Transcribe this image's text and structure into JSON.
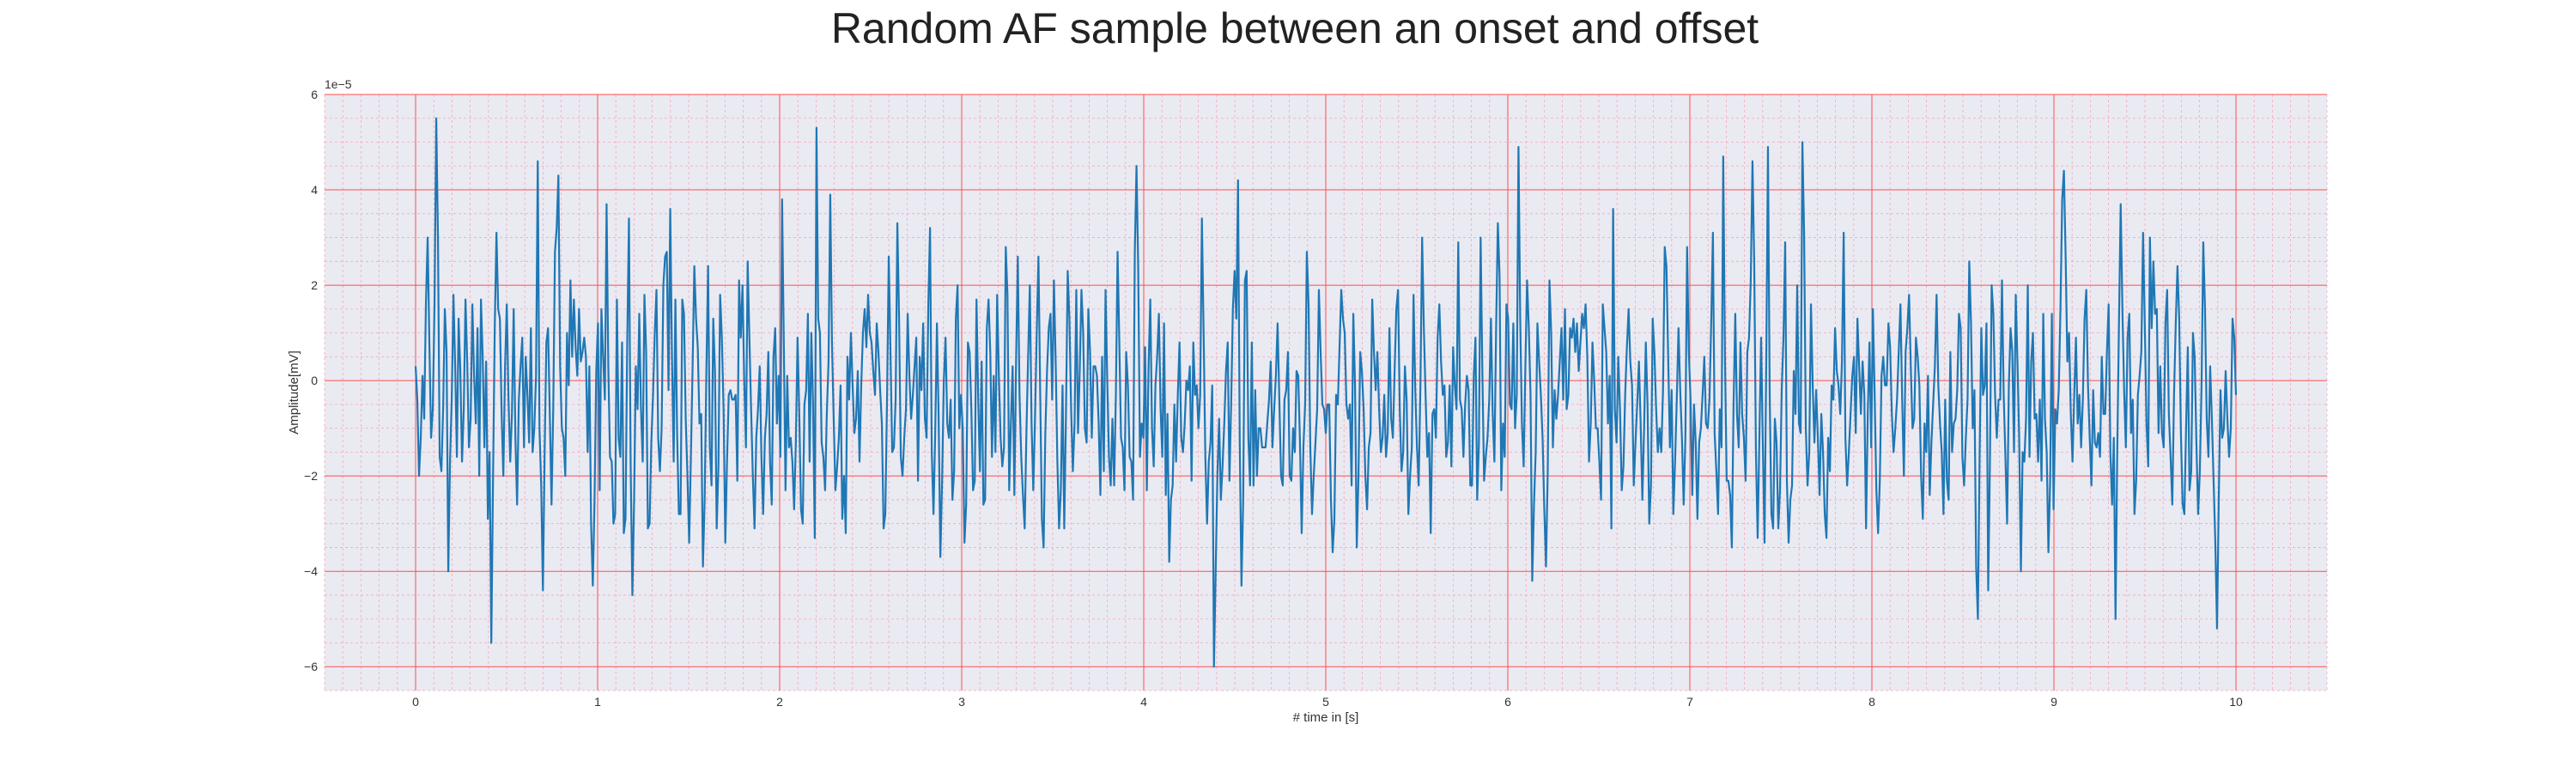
{
  "chart_data": {
    "type": "line",
    "title": "Random AF sample between an onset and offset",
    "xlabel": "# time in [s]",
    "ylabel": "Amplitude[mV]",
    "y_offset_label": "1e−5",
    "xlim": [
      -0.5,
      10.5
    ],
    "ylim": [
      -6.5,
      6
    ],
    "xticks": [
      0,
      1,
      2,
      3,
      4,
      5,
      6,
      7,
      8,
      9,
      10
    ],
    "yticks": [
      -6,
      -4,
      -2,
      0,
      2,
      4,
      6
    ],
    "ytick_labels": [
      "−6",
      "−4",
      "−2",
      "0",
      "2",
      "4",
      "6"
    ],
    "grid": true,
    "colors": {
      "line": "#1f77b4",
      "plot_background": "#eaeaf2",
      "major_grid": "#ff4d4d",
      "minor_grid": "#f5a8b8"
    },
    "series": [
      {
        "x_start": 0,
        "x_end": 10,
        "values": [
          0.3,
          -0.4,
          -2,
          -1.2,
          0.1,
          -0.8,
          1.6,
          3,
          0.8,
          -1.2,
          -0.6,
          1.6,
          5.5,
          3,
          -1.6,
          -1.9,
          -0.6,
          1.5,
          0.6,
          -4,
          -1.7,
          -0.4,
          1.8,
          0.3,
          -1.6,
          1.3,
          0.2,
          -1.7,
          -0.6,
          1.7,
          0.4,
          -1.4,
          -0.8,
          1.6,
          0.1,
          -0.9,
          1.1,
          -2,
          1.7,
          0.5,
          -1.4,
          0.4,
          -2.9,
          -1.5,
          -5.5,
          -2.1,
          1.1,
          3.1,
          1.5,
          1.3,
          -0.7,
          -2,
          0.3,
          1.6,
          -0.4,
          -1.7,
          -0.7,
          1.5,
          -1.2,
          -2.6,
          -0.4,
          0.3,
          0.9,
          -1.4,
          0.5,
          -0.3,
          -1.3,
          1.1,
          -1.5,
          -1,
          0.1,
          4.6,
          -1,
          -2.2,
          -4.4,
          -1.5,
          0.8,
          1.1,
          -0.7,
          -2.6,
          -0.6,
          2.7,
          3.2,
          4.3,
          0.3,
          -1,
          -1.2,
          -2,
          1,
          -0.1,
          2.1,
          0.5,
          1.7,
          0.7,
          0.1,
          1.5,
          0.4,
          0.6,
          0.9,
          0.5,
          -1.5,
          0.3,
          -3,
          -4.3,
          -2.5,
          0.2,
          1.2,
          -2.3,
          1.5,
          0.5,
          -0.4,
          3.7,
          0.3,
          -1.6,
          -1.7,
          -3,
          -2.8,
          1.7,
          -1.2,
          -1.6,
          0.8,
          -3.2,
          -2.9,
          0.8,
          3.4,
          -1.8,
          -4.5,
          -2.5,
          0.3,
          -0.6,
          1.4,
          -0.6,
          -1.7,
          1.8,
          0.6,
          -3.1,
          -3,
          -1.3,
          -0.3,
          1,
          1.9,
          -1.2,
          -1.9,
          -1,
          2,
          2.6,
          2.7,
          -0.2,
          3.6,
          0.5,
          -1.7,
          1.7,
          -1.1,
          -2.8,
          -2.8,
          1.7,
          1.4,
          -0.8,
          -2,
          -3.4,
          -1.6,
          0.3,
          2.4,
          1.3,
          0.7,
          -0.9,
          -0.7,
          -3.9,
          -2.5,
          0.2,
          2.4,
          -1.4,
          -2.2,
          1.3,
          0.2,
          -3.1,
          -1.8,
          1.8,
          0.9,
          -0.6,
          -3.4,
          -1.7,
          -0.3,
          -0.2,
          -0.4,
          -0.4,
          -0.3,
          -2.1,
          2.1,
          0.9,
          2,
          0,
          -1.4,
          2.5,
          0.9,
          -0.6,
          -2,
          -3.1,
          -1.2,
          -0.6,
          0.3,
          -1.6,
          -2.8,
          -1.2,
          -0.7,
          0.6,
          -1.7,
          -2.6,
          0.5,
          1.1,
          -0.9,
          0.1,
          -1.6,
          3.8,
          0.8,
          -2.3,
          0.1,
          -1.4,
          -1.2,
          -1.7,
          -2.7,
          -1.3,
          0.9,
          -0.7,
          -2.7,
          -3,
          -0.5,
          -0.2,
          1.4,
          -1.7,
          1,
          -0.5,
          -3.3,
          5.3,
          1.3,
          1,
          -1.3,
          -1.6,
          -2.3,
          -0.7,
          0.4,
          3.9,
          0.8,
          -0.8,
          -2.3,
          -1.8,
          -1.2,
          -0.1,
          -2.9,
          -2,
          -3.2,
          0.5,
          -0.4,
          1,
          -0.1,
          -1.1,
          -0.8,
          0.2,
          -1.7,
          -0.1,
          1,
          1.5,
          0.7,
          1.8,
          1,
          0.8,
          0.2,
          -0.3,
          1.2,
          0.6,
          -0.2,
          -0.9,
          -3.1,
          -2.8,
          -0.4,
          2.6,
          0.6,
          -1.5,
          -1.4,
          -0.4,
          3.3,
          1.3,
          -1.6,
          -2,
          -1.2,
          -0.6,
          1.4,
          0.1,
          -0.8,
          -0.3,
          0.3,
          0.9,
          -2.1,
          0.5,
          -0.2,
          1.2,
          -0.8,
          -1.2,
          1.6,
          3.2,
          -1.5,
          -2.8,
          -1.1,
          1.2,
          -0.8,
          -3.7,
          -2.1,
          0,
          0.9,
          -0.9,
          -1.2,
          -0.4,
          -2.5,
          -1.9,
          1.3,
          2,
          -1,
          -0.3,
          -1,
          -3.4,
          -2.6,
          0.8,
          0.6,
          -0.6,
          -2.3,
          -2.1,
          1.7,
          -0.4,
          -1.9,
          0.4,
          -2.6,
          -2.5,
          1.1,
          1.7,
          0.6,
          -1.6,
          0.1,
          -1.5,
          1.8,
          0.1,
          -1.2,
          -1.8,
          -1.4,
          2.8,
          1.8,
          -2.3,
          -0.9,
          0.3,
          -2.4,
          0.4,
          2.6,
          -0.3,
          -1.6,
          -2.4,
          -3.1,
          -1.1,
          0.5,
          2,
          -0.9,
          -2.3,
          -0.8,
          1,
          2.6,
          -0.2,
          -2.9,
          -3.5,
          -1.1,
          0.2,
          1.1,
          1.4,
          -0.4,
          2.1,
          0.4,
          -1.7,
          -3.1,
          -2.3,
          -0.1,
          -3.1,
          -0.7,
          2.3,
          1.3,
          -0.6,
          -1.9,
          -0.9,
          1.9,
          -1.1,
          0.2,
          1.9,
          1,
          -1,
          -1.3,
          1.5,
          0.6,
          -1.2,
          0.3,
          0.3,
          0.1,
          -0.9,
          -2.4,
          0.5,
          -1.9,
          1.9,
          0,
          -1.6,
          -2.2,
          -0.8,
          -2.2,
          -0.3,
          2.7,
          0.8,
          -1.2,
          -1.4,
          -2.3,
          0.6,
          -0.1,
          -1.6,
          -1.7,
          -2.5,
          2.7,
          4.5,
          2.3,
          -1.6,
          -0.9,
          -1.2,
          0.7,
          -2.3,
          0.3,
          1.7,
          -1,
          -1.8,
          -0.1,
          0.5,
          1.4,
          -0.6,
          -1.6,
          1.2,
          -2.4,
          -0.7,
          -3.8,
          -2.5,
          -2.2,
          -0.5,
          -1.7,
          -0.3,
          0.8,
          -1.2,
          -1.5,
          -0.9,
          0,
          -0.2,
          0.3,
          -2.1,
          0.8,
          -0.3,
          -0.1,
          -1,
          -0.3,
          3.4,
          1,
          -1.6,
          -3,
          -1.7,
          -1.3,
          -0.1,
          -6,
          -4,
          -2,
          -0.8,
          -2.5,
          -1.8,
          -0.9,
          0.2,
          0.8,
          -2.1,
          -0.5,
          1.5,
          2.3,
          1.3,
          4.2,
          -1.3,
          -4.3,
          -2.5,
          2.1,
          2.3,
          -1.2,
          -2.2,
          0.8,
          -2.2,
          -0.2,
          -2,
          -1,
          -1,
          -1.4,
          -1.4,
          -1.4,
          -0.9,
          -0.4,
          0.4,
          -1.4,
          -0.6,
          0.1,
          1.2,
          -0.4,
          -2,
          -2.2,
          -0.4,
          -0.2,
          0.6,
          -2,
          -2.1,
          -1,
          -1.5,
          0.2,
          0.1,
          -1.3,
          -3.2,
          -1.4,
          -0.5,
          2.7,
          1.6,
          -1.4,
          -2.8,
          -2,
          -1.3,
          -0.6,
          1.9,
          0.6,
          -0.5,
          -0.6,
          -1.1,
          -0.5,
          -0.5,
          -2.5,
          -3.6,
          -2.9,
          -0.3,
          -0.5,
          0.7,
          1.9,
          1.3,
          1,
          -0.5,
          -0.8,
          -0.5,
          -2.2,
          1.4,
          -0.1,
          -3.5,
          -2,
          0.6,
          0.2,
          -0.6,
          -2,
          -2.7,
          -1.4,
          -1.1,
          1.7,
          0.6,
          -0.2,
          0.6,
          -0.6,
          -1.5,
          -1.2,
          -0.3,
          -1.6,
          -1.1,
          1.1,
          -0.8,
          -1.2,
          0.2,
          1.5,
          1.9,
          -0.6,
          -1.9,
          -1.5,
          0.3,
          -0.4,
          -2.8,
          -2,
          -1.4,
          1.8,
          -0.2,
          -1.4,
          -2.2,
          -0.1,
          3,
          1.1,
          -0.3,
          -1.6,
          -1.1,
          -3.2,
          -0.7,
          -0.6,
          -1.2,
          0.9,
          1.6,
          0.4,
          -0.3,
          -0.1,
          -1.6,
          -1.3,
          -0.1,
          -1.8,
          0.7,
          -0.1,
          -0.6,
          2.9,
          -0.4,
          -0.6,
          -1.6,
          -0.5,
          0.1,
          -0.2,
          -2.2,
          -2.2,
          0.1,
          0.9,
          -2.5,
          -1.3,
          3,
          0.2,
          -2.1,
          -1.6,
          -1.2,
          -0.4,
          1.3,
          -0.7,
          -1.7,
          1.1,
          3.3,
          2.2,
          -2.3,
          -0.9,
          -1.6,
          1.6,
          1.3,
          -0.5,
          -0.6,
          1.2,
          -1,
          -0.3,
          4.9,
          1.3,
          -0.9,
          -1.8,
          0.3,
          2.1,
          1.1,
          -0.3,
          -4.2,
          -2.6,
          -1.5,
          1.2,
          0.4,
          -0.3,
          -1.2,
          -2.7,
          -3.9,
          -1.9,
          2.1,
          1,
          -1.4,
          -0.2,
          -0.8,
          -0.3,
          0.4,
          1.1,
          -0.4,
          1.5,
          -0.6,
          -0.3,
          1.1,
          0.9,
          1.3,
          0.6,
          1.2,
          0.2,
          0.8,
          1.4,
          1.1,
          1.6,
          0.5,
          -1.7,
          -0.9,
          0.8,
          0,
          -1,
          -1,
          -1.7,
          -2.5,
          1.6,
          1.1,
          0.6,
          -0.9,
          0.1,
          -3.1,
          3.6,
          -0.6,
          -1.3,
          0.5,
          -0.6,
          -2.3,
          -1.8,
          -0.3,
          0.7,
          1.5,
          0.4,
          -0.1,
          -2.2,
          -1.3,
          -0.5,
          0.4,
          -0.9,
          -2.5,
          -1,
          0.8,
          -0.5,
          -3,
          -2.2,
          1.3,
          0.6,
          -0.6,
          -1.5,
          -1,
          -1.5,
          -0.2,
          2.8,
          2.4,
          0.5,
          -1.4,
          -0.2,
          -2.8,
          -1.7,
          -0.4,
          1.1,
          -0.2,
          -1.2,
          -2.6,
          -1.2,
          2.8,
          0.6,
          -0.4,
          -2.4,
          -0.5,
          -1.3,
          -2.9,
          -1.3,
          -1,
          -0.3,
          0.5,
          -0.9,
          -1,
          -0.4,
          1.2,
          3.1,
          -1.1,
          -1.9,
          -2.8,
          -0.6,
          -1.4,
          4.7,
          0.5,
          -2.1,
          -2.1,
          -2.4,
          -3.5,
          -0.5,
          1.4,
          -0.7,
          -1.4,
          0.8,
          -0.7,
          -1.2,
          -2.1,
          0.6,
          0.9,
          2.1,
          4.6,
          2.5,
          -1.5,
          -3.3,
          -1.2,
          0.9,
          -1.3,
          -3.4,
          0.4,
          4.9,
          -0.3,
          -2.8,
          -3.1,
          -0.8,
          -1.3,
          -3.1,
          -2.3,
          -0.2,
          0.9,
          2.9,
          -2.1,
          -3.4,
          -2.5,
          -2.2,
          0.2,
          -0.7,
          2,
          -0.9,
          -1.1,
          5,
          3.1,
          -1,
          -2.2,
          -1.5,
          1.6,
          -0.1,
          -1.3,
          -0.2,
          -1.2,
          -2.4,
          -0.7,
          -1.5,
          -2.8,
          -3.3,
          -1.2,
          -1.9,
          -0.1,
          -0.4,
          1.1,
          0.2,
          -0.1,
          -0.7,
          0.4,
          3.1,
          -1.2,
          -2.2,
          -1.5,
          -0.7,
          0.1,
          0.5,
          -1.1,
          1.3,
          0.3,
          -0.7,
          0.4,
          -0.3,
          -3.1,
          -0.7,
          0.8,
          -1.4,
          1.5,
          -0.3,
          -2.3,
          -3.2,
          -2.1,
          0.1,
          0.5,
          -0.1,
          -0.1,
          1.2,
          0.7,
          -0.7,
          -1.5,
          -1,
          -0.4,
          0.6,
          1.6,
          -0.4,
          -2,
          0.6,
          1.1,
          1.8,
          0.3,
          -1,
          -0.8,
          0.9,
          0.5,
          -0.1,
          -2,
          -2.9,
          -0.9,
          -1.5,
          0.1,
          -2.4,
          -1.3,
          -0.5,
          0.3,
          1.8,
          -0.1,
          -0.9,
          -1.5,
          -2.8,
          -0.4,
          -2.1,
          -2.5,
          0.6,
          -1.5,
          -0.9,
          -0.8,
          -0.2,
          1.4,
          1.1,
          -1.6,
          -2.2,
          -1.2,
          -0.4,
          2.5,
          1.2,
          -1,
          -0.2,
          -3.9,
          -5,
          -1.6,
          1.1,
          -0.3,
          -0.1,
          1.2,
          -4.4,
          -1.7,
          2,
          1.4,
          -0.3,
          -1.2,
          -0.4,
          -0.4,
          2.1,
          -0.3,
          -1.6,
          -3,
          -0.1,
          1.1,
          0.6,
          -1.5,
          1.8,
          0.4,
          -1.2,
          -4,
          -1.5,
          -1.7,
          -0.8,
          2,
          -1.6,
          0.4,
          1,
          -0.8,
          -0.7,
          -1.7,
          -0.4,
          -2.1,
          1.4,
          -0.8,
          -1.5,
          -3.6,
          -2.1,
          1.4,
          -2.7,
          -0.6,
          -0.9,
          -0.2,
          1.5,
          3.8,
          4.4,
          2.6,
          0.4,
          1,
          -0.7,
          -1.7,
          -0.3,
          0.9,
          -0.9,
          -0.3,
          -1.4,
          -0.4,
          1.3,
          1.9,
          -0.1,
          -1.2,
          -2.2,
          -0.2,
          -1.3,
          -1.4,
          -1.1,
          -1.6,
          0.5,
          -0.7,
          -0.7,
          0.6,
          1.6,
          -1.5,
          -2.6,
          -1.2,
          -5,
          -1.5,
          1.2,
          3.7,
          1.5,
          -0.2,
          -1.4,
          0.9,
          1.4,
          -1.1,
          -0.4,
          -2.8,
          -2.1,
          -0.3,
          0.1,
          0.6,
          3.1,
          1.2,
          -0.9,
          -1.8,
          3,
          1.1,
          2.5,
          1.4,
          1.5,
          -1.1,
          0.3,
          -1.1,
          -1.4,
          1.2,
          1.9,
          -0.7,
          -1.6,
          -2.6,
          -0.3,
          1.2,
          2.4,
          1.3,
          -1.1,
          -2.6,
          -2.8,
          -1,
          0.7,
          -2.3,
          -1.9,
          1,
          0.5,
          -1.3,
          -2.8,
          -1.9,
          -0.1,
          2.9,
          1.5,
          -0.8,
          -1.6,
          0.3,
          -0.8,
          -2.1,
          -3.4,
          -5.2,
          -2.5,
          -0.2,
          -1.2,
          -1,
          0.2,
          -0.8,
          -1.6,
          -1,
          1.3,
          0.9,
          -0.3
        ]
      }
    ]
  }
}
